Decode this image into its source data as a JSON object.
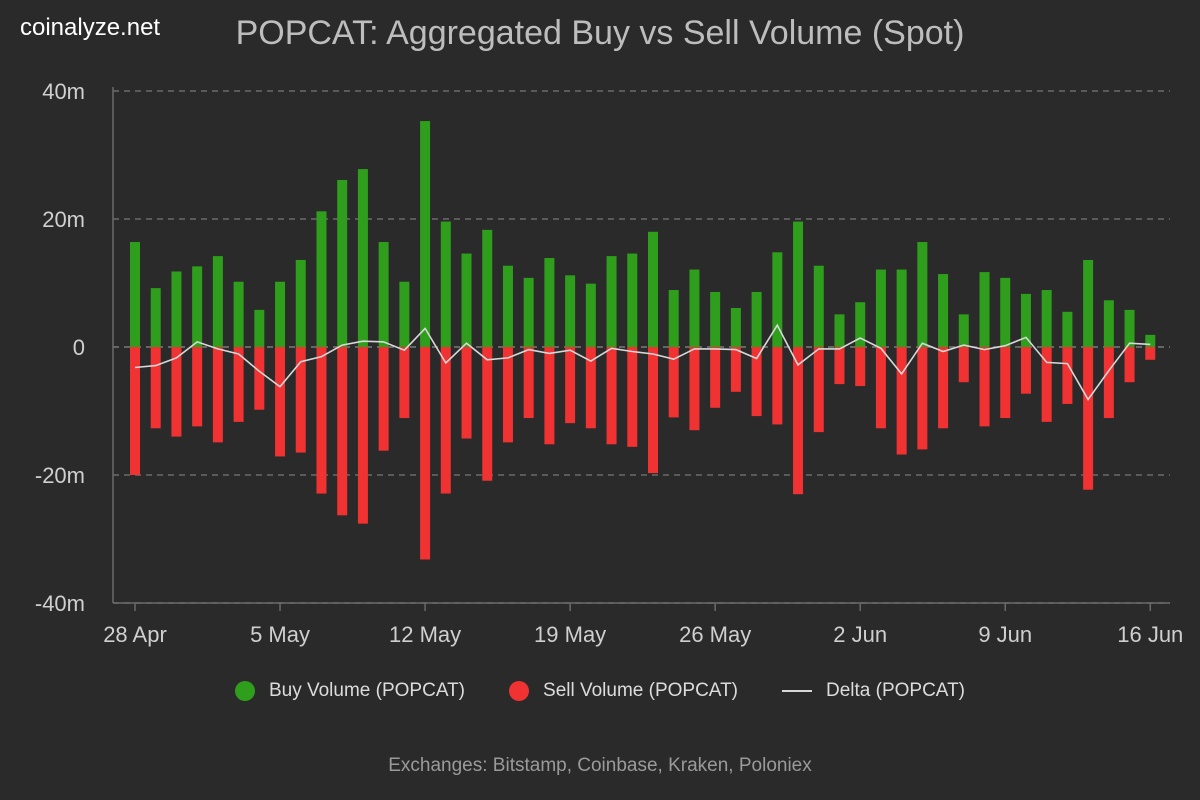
{
  "brand": "coinalyze.net",
  "colors": {
    "buy": "#2e9e1c",
    "sell": "#f03232",
    "delta": "#d8d8d8",
    "grid": "#6a6a6a",
    "axis_text": "#cfcfcf"
  },
  "legend": {
    "buy": "Buy Volume (POPCAT)",
    "sell": "Sell Volume (POPCAT)",
    "delta": "Delta (POPCAT)"
  },
  "footer": "Exchanges: Bitstamp, Coinbase, Kraken, Poloniex",
  "chart_data": {
    "type": "bar",
    "title": "POPCAT: Aggregated Buy vs Sell Volume (Spot)",
    "xlabel": "",
    "ylabel": "",
    "ylim": [
      -40,
      40
    ],
    "y_ticks": [
      40,
      20,
      0,
      -20,
      -40
    ],
    "y_tick_labels": [
      "40m",
      "20m",
      "0",
      "-20m",
      "-40m"
    ],
    "x_tick_labels": [
      {
        "label": "28 Apr",
        "index": 0
      },
      {
        "label": "5 May",
        "index": 7
      },
      {
        "label": "12 May",
        "index": 14
      },
      {
        "label": "19 May",
        "index": 21
      },
      {
        "label": "26 May",
        "index": 28
      },
      {
        "label": "2 Jun",
        "index": 35
      },
      {
        "label": "9 Jun",
        "index": 42
      },
      {
        "label": "16 Jun",
        "index": 49
      }
    ],
    "grid": true,
    "unit": "m",
    "series": [
      {
        "name": "Buy Volume (POPCAT)",
        "type": "bar",
        "values": [
          16.4,
          9.2,
          11.8,
          12.6,
          14.2,
          10.2,
          5.8,
          10.2,
          13.6,
          21.2,
          26.1,
          27.8,
          16.4,
          10.2,
          35.3,
          19.6,
          14.6,
          18.3,
          12.7,
          10.8,
          13.9,
          11.2,
          9.9,
          14.2,
          14.6,
          18.0,
          8.9,
          12.1,
          8.6,
          6.1,
          8.6,
          14.8,
          19.6,
          12.7,
          5.1,
          7.0,
          12.1,
          12.1,
          16.4,
          11.4,
          5.1,
          11.7,
          10.8,
          8.3,
          8.9,
          5.5,
          13.6,
          7.3,
          5.8,
          1.9
        ]
      },
      {
        "name": "Sell Volume (POPCAT)",
        "type": "bar",
        "values": [
          -20.0,
          -12.7,
          -14.0,
          -12.4,
          -14.9,
          -11.7,
          -9.8,
          -17.1,
          -16.5,
          -22.9,
          -26.3,
          -27.6,
          -16.2,
          -11.1,
          -33.2,
          -22.9,
          -14.3,
          -20.9,
          -14.9,
          -11.1,
          -15.2,
          -11.9,
          -12.7,
          -15.2,
          -15.6,
          -19.7,
          -11.0,
          -13.0,
          -9.5,
          -7.0,
          -10.8,
          -12.1,
          -23.0,
          -13.3,
          -5.8,
          -6.1,
          -12.7,
          -16.8,
          -16.0,
          -12.7,
          -5.5,
          -12.4,
          -11.1,
          -7.3,
          -11.7,
          -8.9,
          -22.3,
          -11.1,
          -5.5,
          -2.0
        ]
      },
      {
        "name": "Delta (POPCAT)",
        "type": "line",
        "values": [
          -3.2,
          -2.9,
          -1.7,
          0.8,
          -0.3,
          -1.1,
          -3.8,
          -6.2,
          -2.3,
          -1.5,
          0.3,
          0.9,
          0.8,
          -0.5,
          2.9,
          -2.5,
          0.6,
          -2.0,
          -1.7,
          -0.4,
          -1.0,
          -0.5,
          -2.2,
          -0.2,
          -0.7,
          -1.1,
          -1.9,
          -0.3,
          -0.3,
          -0.4,
          -1.8,
          3.4,
          -2.8,
          -0.3,
          -0.3,
          1.4,
          -0.2,
          -4.2,
          0.6,
          -0.7,
          0.3,
          -0.4,
          0.2,
          1.5,
          -2.4,
          -2.6,
          -8.2,
          -3.7,
          0.6,
          0.4
        ]
      }
    ]
  }
}
